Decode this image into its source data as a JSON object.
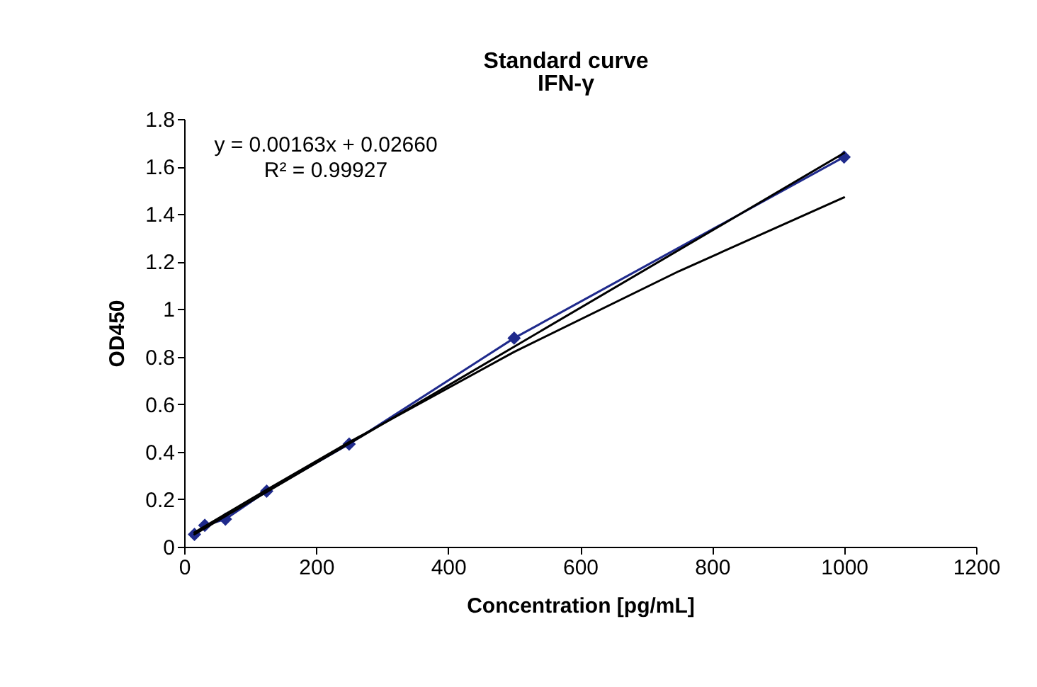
{
  "chart_data": {
    "type": "line",
    "title": "Standard curve",
    "subtitle": "IFN-γ",
    "xlabel": "Concentration [pg/mL]",
    "ylabel": "OD450",
    "xlim": [
      0,
      1200
    ],
    "xticks": [
      0,
      200,
      400,
      600,
      800,
      1000,
      1200
    ],
    "ylim": [
      0,
      1.8
    ],
    "yticks": [
      0,
      0.2,
      0.4,
      0.6,
      0.8,
      1,
      1.2,
      1.4,
      1.6,
      1.8
    ],
    "grid": false,
    "annotations": [
      "y = 0.00163x + 0.02660",
      "R² = 0.99927"
    ],
    "series": [
      {
        "color": "#1f2a8c",
        "marker": "diamond",
        "x": [
          15.6,
          31.25,
          62.5,
          125,
          250,
          500,
          1000
        ],
        "values": [
          0.052,
          0.09,
          0.116,
          0.234,
          0.432,
          0.878,
          1.64
        ]
      },
      {
        "color": "#000000",
        "marker": "none",
        "x": [
          15.6,
          1000
        ],
        "values": [
          0.052,
          1.657
        ]
      },
      {
        "color": "#000000",
        "marker": "none",
        "x": [
          15.6,
          125,
          250,
          500,
          750,
          1000
        ],
        "values": [
          0.06,
          0.24,
          0.44,
          0.82,
          1.16,
          1.47
        ]
      }
    ]
  }
}
